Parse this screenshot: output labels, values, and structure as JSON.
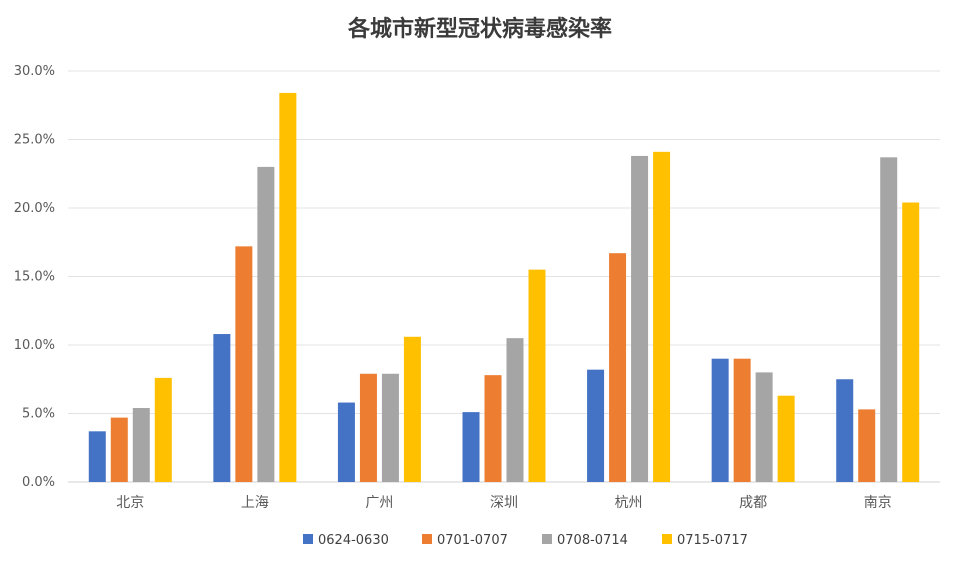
{
  "chart_data": {
    "type": "bar",
    "title": "各城市新型冠状病毒感染率",
    "xlabel": "",
    "ylabel": "",
    "categories": [
      "北京",
      "上海",
      "广州",
      "深圳",
      "杭州",
      "成都",
      "南京"
    ],
    "series": [
      {
        "name": "0624-0630",
        "color": "#4472c4",
        "values": [
          3.7,
          10.8,
          5.8,
          5.1,
          8.2,
          9.0,
          7.5
        ]
      },
      {
        "name": "0701-0707",
        "color": "#ed7d31",
        "values": [
          4.7,
          17.2,
          7.9,
          7.8,
          16.7,
          9.0,
          5.3
        ]
      },
      {
        "name": "0708-0714",
        "color": "#a5a5a5",
        "values": [
          5.4,
          23.0,
          7.9,
          10.5,
          23.8,
          8.0,
          23.7
        ]
      },
      {
        "name": "0715-0717",
        "color": "#ffc000",
        "values": [
          7.6,
          28.4,
          10.6,
          15.5,
          24.1,
          6.3,
          20.4
        ]
      }
    ],
    "ylim": [
      0,
      30
    ],
    "yticks": [
      "0.0%",
      "5.0%",
      "10.0%",
      "15.0%",
      "20.0%",
      "25.0%",
      "30.0%"
    ],
    "ytick_values": [
      0,
      5,
      10,
      15,
      20,
      25,
      30
    ],
    "grid": true,
    "legend_position": "bottom"
  }
}
